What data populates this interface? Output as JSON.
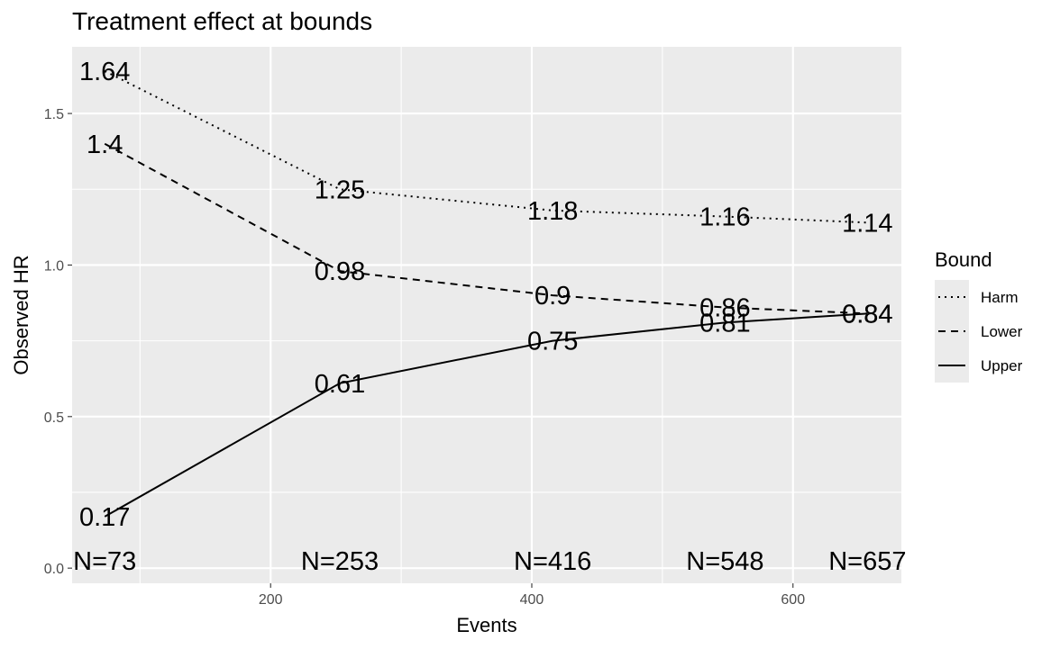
{
  "chart_data": {
    "type": "line",
    "title": "Treatment effect at bounds",
    "xlabel": "Events",
    "ylabel": "Observed HR",
    "xlim": [
      48,
      683
    ],
    "ylim": [
      -0.05,
      1.72
    ],
    "x_ticks": [
      200,
      400,
      600
    ],
    "y_ticks": [
      0.0,
      0.5,
      1.0,
      1.5
    ],
    "y_tick_labels": [
      "0.0",
      "0.5",
      "1.0",
      "1.5"
    ],
    "grid": true,
    "legend": {
      "title": "Bound",
      "position": "right",
      "entries": [
        "Harm",
        "Lower",
        "Upper"
      ]
    },
    "x": [
      73,
      253,
      416,
      548,
      657
    ],
    "series": [
      {
        "name": "Harm",
        "linetype": "dotted",
        "values": [
          1.64,
          1.25,
          1.18,
          1.16,
          1.14
        ],
        "labels": [
          "1.64",
          "1.25",
          "1.18",
          "1.16",
          "1.14"
        ]
      },
      {
        "name": "Lower",
        "linetype": "dashed",
        "values": [
          1.4,
          0.98,
          0.9,
          0.86,
          0.84
        ],
        "labels": [
          "1.4",
          "0.98",
          "0.9",
          "0.86",
          "0.84"
        ]
      },
      {
        "name": "Upper",
        "linetype": "solid",
        "values": [
          0.17,
          0.61,
          0.75,
          0.81,
          0.84
        ],
        "labels": [
          "0.17",
          "0.61",
          "0.75",
          "0.81",
          "0.84"
        ]
      }
    ],
    "annotations": [
      "N=73",
      "N=253",
      "N=416",
      "N=548",
      "N=657"
    ],
    "colors": {
      "panel": "#ebebeb",
      "grid": "#ffffff",
      "line": "#000000",
      "tick_text": "#4d4d4d"
    }
  }
}
